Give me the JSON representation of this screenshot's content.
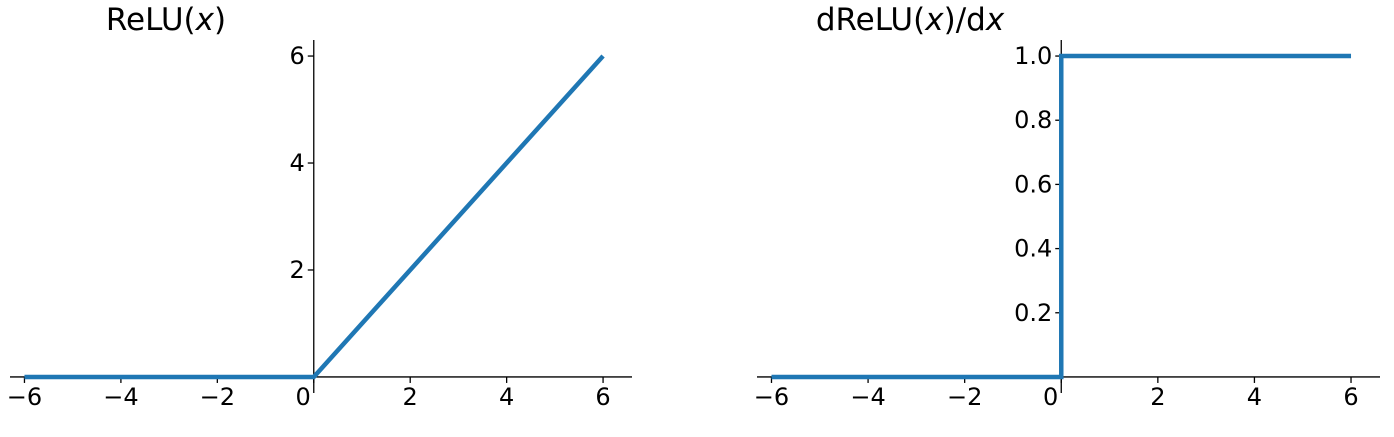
{
  "chart_data": [
    {
      "type": "line",
      "title": "ReLU(x)",
      "title_parts": [
        {
          "text": "ReLU(",
          "italic": false
        },
        {
          "text": "x",
          "italic": true
        },
        {
          "text": ")",
          "italic": false
        }
      ],
      "xlabel": "",
      "ylabel": "",
      "xlim": [
        -6.3,
        6.6
      ],
      "ylim": [
        -0.3,
        6.3
      ],
      "xticks": [
        -6,
        -4,
        -2,
        0,
        2,
        4,
        6
      ],
      "xtick_labels": [
        "−6",
        "−4",
        "−2",
        "0",
        "2",
        "4",
        "6"
      ],
      "yticks": [
        2,
        4,
        6
      ],
      "ytick_labels": [
        "2",
        "4",
        "6"
      ],
      "spines": "centered-at-origin",
      "grid": false,
      "series": [
        {
          "color": "#1f77b4",
          "x": [
            -6,
            0,
            6
          ],
          "y": [
            0,
            0,
            6
          ]
        }
      ]
    },
    {
      "type": "line",
      "title": "dReLU(x)/dx",
      "title_parts": [
        {
          "text": "dReLU(",
          "italic": false
        },
        {
          "text": "x",
          "italic": true
        },
        {
          "text": ")/d",
          "italic": false
        },
        {
          "text": "x",
          "italic": true
        }
      ],
      "xlabel": "",
      "ylabel": "",
      "xlim": [
        -6.3,
        6.6
      ],
      "ylim": [
        -0.05,
        1.05
      ],
      "xticks": [
        -6,
        -4,
        -2,
        0,
        2,
        4,
        6
      ],
      "xtick_labels": [
        "−6",
        "−4",
        "−2",
        "0",
        "2",
        "4",
        "6"
      ],
      "yticks": [
        0.2,
        0.4,
        0.6,
        0.8,
        1.0
      ],
      "ytick_labels": [
        "0.2",
        "0.4",
        "0.6",
        "0.8",
        "1.0"
      ],
      "spines": "centered-at-origin",
      "grid": false,
      "series": [
        {
          "color": "#1f77b4",
          "x": [
            -6,
            0,
            0,
            6
          ],
          "y": [
            0,
            0,
            1,
            1
          ]
        }
      ]
    }
  ]
}
